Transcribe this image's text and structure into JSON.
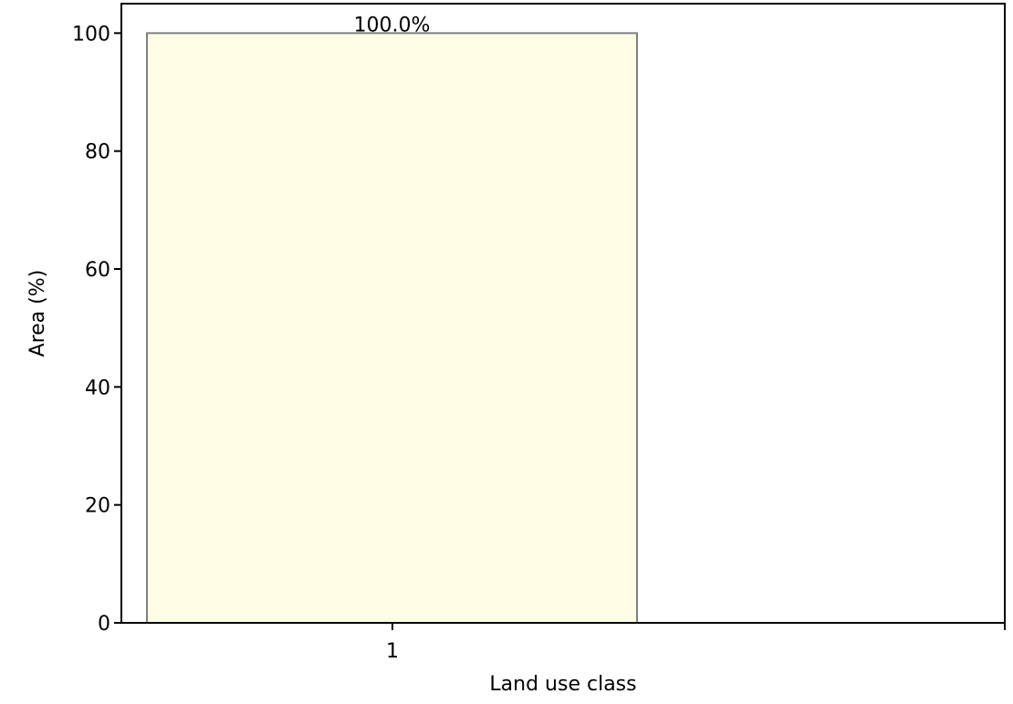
{
  "chart_data": {
    "type": "bar",
    "categories": [
      "1"
    ],
    "values": [
      100
    ],
    "value_labels": [
      "100.0%"
    ],
    "xlabel": "Land use class",
    "ylabel": "Area (%)",
    "ylim": [
      0,
      105
    ],
    "yticks": [
      0,
      20,
      40,
      60,
      80,
      100
    ],
    "grid": false,
    "colors": {
      "bar_fill": "#fdfde6",
      "bar_edge": "#808080",
      "axis": "#000000"
    }
  }
}
